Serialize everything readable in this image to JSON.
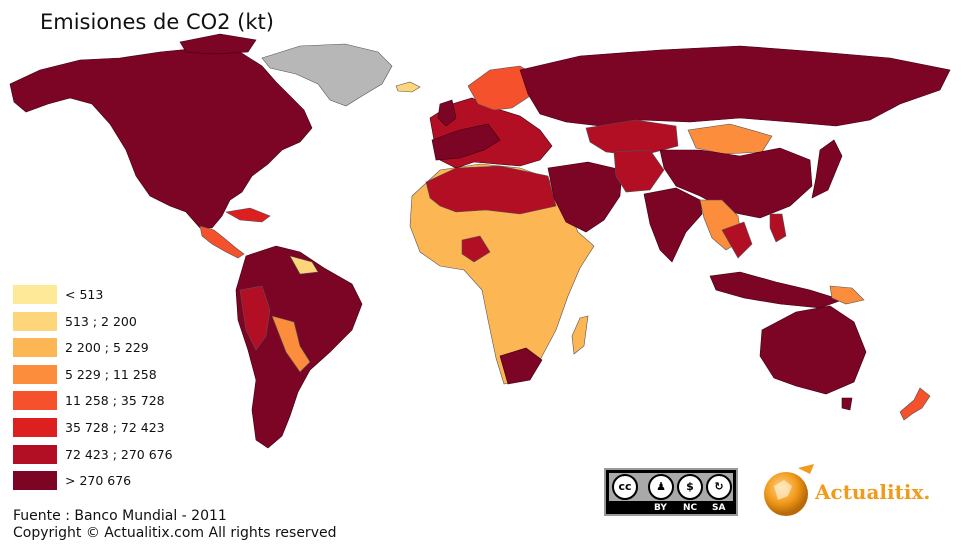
{
  "title": "Emisiones de CO2 (kt)",
  "legend": {
    "items": [
      {
        "label": "< 513",
        "color": "#fee999"
      },
      {
        "label": "513 ; 2 200",
        "color": "#fdd57a"
      },
      {
        "label": "2 200 ; 5 229",
        "color": "#fdb654"
      },
      {
        "label": "5 229 ; 11 258",
        "color": "#fc8d3c"
      },
      {
        "label": "11 258 ; 35 728",
        "color": "#f6512d"
      },
      {
        "label": "35 728 ; 72 423",
        "color": "#de1f1f"
      },
      {
        "label": "72 423 ; 270 676",
        "color": "#b20e24"
      },
      {
        "label": "> 270 676",
        "color": "#7c0425"
      }
    ],
    "no_data_color": "#b7b7b7"
  },
  "source": {
    "line1": "Fuente : Banco Mundial - 2011",
    "line2": "Copyright © Actualitix.com All rights reserved"
  },
  "license": {
    "symbol": "cc",
    "tags": [
      "BY",
      "NC",
      "SA"
    ],
    "icons": [
      "cc-icon",
      "by-icon",
      "nc-icon",
      "sa-icon"
    ]
  },
  "logo": {
    "name": "Actualitix",
    "suffix": ".",
    "icon": "globe-icon"
  }
}
